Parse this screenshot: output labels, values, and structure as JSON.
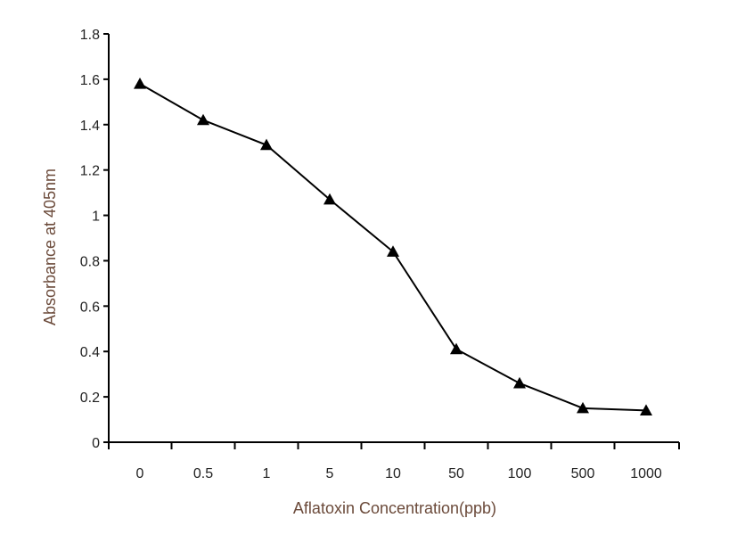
{
  "chart_data": {
    "type": "line",
    "title": "",
    "xlabel": "Aflatoxin Concentration(ppb)",
    "ylabel": "Absorbance at 405nm",
    "categories": [
      "0",
      "0.5",
      "1",
      "5",
      "10",
      "50",
      "100",
      "500",
      "1000"
    ],
    "series": [
      {
        "values": [
          1.58,
          1.42,
          1.31,
          1.07,
          0.84,
          0.41,
          0.26,
          0.15,
          0.14
        ],
        "marker": "triangle",
        "color": "#000000"
      }
    ],
    "y_ticks": [
      "0",
      "0.2",
      "0.4",
      "0.6",
      "0.8",
      "1",
      "1.2",
      "1.4",
      "1.6",
      "1.8"
    ],
    "ylim": [
      0,
      1.8
    ],
    "grid": false,
    "legend": "none"
  }
}
